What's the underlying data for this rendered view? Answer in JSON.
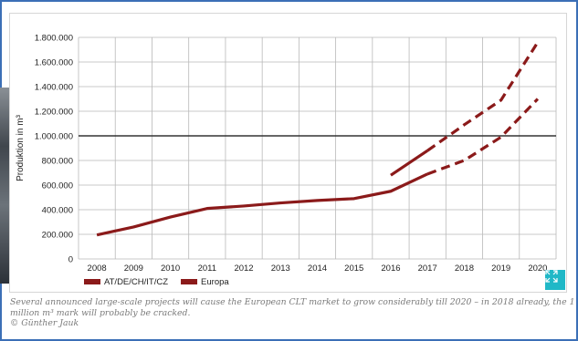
{
  "chart_data": {
    "type": "line",
    "ylabel": "Produktion in m³",
    "xlabel": "",
    "x": [
      2008,
      2009,
      2010,
      2011,
      2012,
      2013,
      2014,
      2015,
      2016,
      2017,
      2018,
      2019,
      2020
    ],
    "ylim": [
      0,
      1800000
    ],
    "yticks": [
      0,
      200000,
      400000,
      600000,
      800000,
      1000000,
      1200000,
      1400000,
      1600000,
      1800000
    ],
    "ytick_labels": [
      "0",
      "200.000",
      "400.000",
      "600.000",
      "800.000",
      "1.000.000",
      "1.200.000",
      "1.400.000",
      "1.600.000",
      "1.800.000"
    ],
    "reference_line": 1000000,
    "grid": true,
    "legend_position": "bottom-left",
    "series": [
      {
        "name": "AT/DE/CH/IT/CZ",
        "color": "#8b1a1a",
        "solid": {
          "x": [
            2008,
            2009,
            2010,
            2011,
            2012,
            2013,
            2014,
            2015,
            2016,
            2017
          ],
          "y": [
            195000,
            260000,
            340000,
            410000,
            430000,
            455000,
            475000,
            490000,
            550000,
            690000
          ]
        },
        "dashed": {
          "x": [
            2017,
            2018,
            2019,
            2020
          ],
          "y": [
            690000,
            800000,
            990000,
            1300000
          ]
        }
      },
      {
        "name": "Europa",
        "color": "#8b1a1a",
        "solid": {
          "x": [
            2016,
            2017
          ],
          "y": [
            680000,
            880000
          ]
        },
        "dashed": {
          "x": [
            2017,
            2018,
            2019,
            2020
          ],
          "y": [
            880000,
            1090000,
            1290000,
            1760000
          ]
        }
      }
    ]
  },
  "caption": {
    "line1": "Several announced large-scale projects will cause the European CLT market to grow considerably till 2020 – in 2018 already, the 1",
    "line2": "million m³ mark will probably be cracked.",
    "credit": "© Günther Jauk"
  },
  "icons": {
    "expand": "expand-icon"
  },
  "colors": {
    "accent": "#20b8c7",
    "frame": "#3b6fb6",
    "series": "#8b1a1a"
  }
}
